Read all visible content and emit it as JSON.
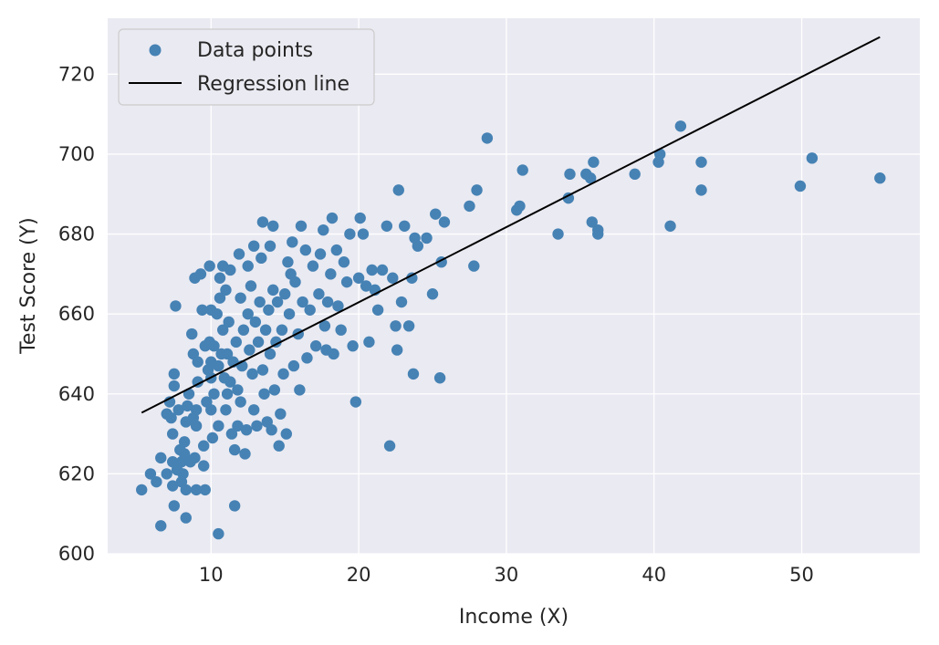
{
  "chart_data": {
    "type": "scatter",
    "xlabel": "Income (X)",
    "ylabel": "Test Score (Y)",
    "xlim": [
      3,
      58
    ],
    "ylim": [
      600,
      734
    ],
    "xticks": [
      10,
      20,
      30,
      40,
      50
    ],
    "yticks": [
      600,
      620,
      640,
      660,
      680,
      700,
      720
    ],
    "grid": true,
    "legend_position": "top-left",
    "colors": {
      "points": "#4682b4",
      "line": "#000000",
      "plot_background": "#eaeaf2",
      "grid": "#ffffff"
    },
    "legend": [
      {
        "label": "Data points",
        "kind": "marker"
      },
      {
        "label": "Regression line",
        "kind": "line"
      }
    ],
    "series": [
      {
        "name": "Data points",
        "kind": "scatter",
        "points": [
          [
            5.3,
            616
          ],
          [
            5.9,
            620
          ],
          [
            6.3,
            618
          ],
          [
            6.6,
            624
          ],
          [
            6.6,
            607
          ],
          [
            7.0,
            620
          ],
          [
            7.0,
            635
          ],
          [
            7.2,
            638
          ],
          [
            7.3,
            634
          ],
          [
            7.4,
            630
          ],
          [
            7.4,
            623
          ],
          [
            7.4,
            617
          ],
          [
            7.5,
            612
          ],
          [
            7.5,
            642
          ],
          [
            7.5,
            645
          ],
          [
            7.6,
            662
          ],
          [
            7.7,
            621
          ],
          [
            7.8,
            636
          ],
          [
            7.9,
            626
          ],
          [
            8.0,
            618
          ],
          [
            8.0,
            623
          ],
          [
            8.1,
            620
          ],
          [
            8.2,
            625
          ],
          [
            8.2,
            628
          ],
          [
            8.3,
            616
          ],
          [
            8.3,
            609
          ],
          [
            8.3,
            633
          ],
          [
            8.4,
            637
          ],
          [
            8.5,
            640
          ],
          [
            8.6,
            623
          ],
          [
            8.7,
            655
          ],
          [
            8.8,
            650
          ],
          [
            8.8,
            634
          ],
          [
            8.9,
            669
          ],
          [
            8.9,
            624
          ],
          [
            9.0,
            616
          ],
          [
            9.0,
            632
          ],
          [
            9.0,
            636
          ],
          [
            9.1,
            648
          ],
          [
            9.1,
            643
          ],
          [
            9.3,
            670
          ],
          [
            9.4,
            661
          ],
          [
            9.5,
            627
          ],
          [
            9.5,
            622
          ],
          [
            9.6,
            652
          ],
          [
            9.6,
            616
          ],
          [
            9.7,
            638
          ],
          [
            9.8,
            646
          ],
          [
            9.9,
            653
          ],
          [
            9.9,
            672
          ],
          [
            10.0,
            648
          ],
          [
            10.0,
            636
          ],
          [
            10.0,
            644
          ],
          [
            10.0,
            661
          ],
          [
            10.1,
            629
          ],
          [
            10.2,
            652
          ],
          [
            10.2,
            640
          ],
          [
            10.4,
            660
          ],
          [
            10.5,
            605
          ],
          [
            10.5,
            632
          ],
          [
            10.5,
            647
          ],
          [
            10.6,
            664
          ],
          [
            10.6,
            669
          ],
          [
            10.7,
            650
          ],
          [
            10.8,
            672
          ],
          [
            10.8,
            656
          ],
          [
            10.9,
            644
          ],
          [
            11.0,
            666
          ],
          [
            11.0,
            636
          ],
          [
            11.1,
            650
          ],
          [
            11.1,
            640
          ],
          [
            11.2,
            658
          ],
          [
            11.3,
            643
          ],
          [
            11.3,
            671
          ],
          [
            11.4,
            630
          ],
          [
            11.5,
            648
          ],
          [
            11.6,
            626
          ],
          [
            11.6,
            612
          ],
          [
            11.7,
            653
          ],
          [
            11.8,
            641
          ],
          [
            11.8,
            632
          ],
          [
            11.9,
            675
          ],
          [
            12.0,
            664
          ],
          [
            12.0,
            638
          ],
          [
            12.1,
            647
          ],
          [
            12.2,
            656
          ],
          [
            12.3,
            625
          ],
          [
            12.4,
            631
          ],
          [
            12.5,
            672
          ],
          [
            12.5,
            660
          ],
          [
            12.6,
            651
          ],
          [
            12.7,
            667
          ],
          [
            12.8,
            645
          ],
          [
            12.9,
            677
          ],
          [
            12.9,
            636
          ],
          [
            13.0,
            658
          ],
          [
            13.1,
            632
          ],
          [
            13.2,
            653
          ],
          [
            13.3,
            663
          ],
          [
            13.4,
            674
          ],
          [
            13.5,
            683
          ],
          [
            13.5,
            646
          ],
          [
            13.6,
            640
          ],
          [
            13.7,
            656
          ],
          [
            13.8,
            633
          ],
          [
            13.9,
            661
          ],
          [
            14.0,
            677
          ],
          [
            14.0,
            650
          ],
          [
            14.1,
            631
          ],
          [
            14.2,
            666
          ],
          [
            14.2,
            682
          ],
          [
            14.3,
            641
          ],
          [
            14.4,
            653
          ],
          [
            14.5,
            663
          ],
          [
            14.6,
            627
          ],
          [
            14.7,
            635
          ],
          [
            14.8,
            656
          ],
          [
            14.9,
            645
          ],
          [
            15.0,
            665
          ],
          [
            15.1,
            630
          ],
          [
            15.2,
            673
          ],
          [
            15.3,
            660
          ],
          [
            15.4,
            670
          ],
          [
            15.5,
            678
          ],
          [
            15.6,
            647
          ],
          [
            15.7,
            668
          ],
          [
            15.9,
            655
          ],
          [
            16.0,
            641
          ],
          [
            16.1,
            682
          ],
          [
            16.2,
            663
          ],
          [
            16.4,
            676
          ],
          [
            16.5,
            649
          ],
          [
            16.7,
            661
          ],
          [
            16.9,
            672
          ],
          [
            17.1,
            652
          ],
          [
            17.3,
            665
          ],
          [
            17.4,
            675
          ],
          [
            17.6,
            681
          ],
          [
            17.7,
            657
          ],
          [
            17.8,
            651
          ],
          [
            17.9,
            663
          ],
          [
            18.1,
            670
          ],
          [
            18.2,
            684
          ],
          [
            18.3,
            650
          ],
          [
            18.5,
            676
          ],
          [
            18.6,
            662
          ],
          [
            18.8,
            656
          ],
          [
            19.0,
            673
          ],
          [
            19.2,
            668
          ],
          [
            19.4,
            680
          ],
          [
            19.6,
            652
          ],
          [
            19.8,
            638
          ],
          [
            20.0,
            669
          ],
          [
            20.1,
            684
          ],
          [
            20.3,
            680
          ],
          [
            20.5,
            667
          ],
          [
            20.7,
            653
          ],
          [
            20.9,
            671
          ],
          [
            21.1,
            666
          ],
          [
            21.3,
            661
          ],
          [
            21.6,
            671
          ],
          [
            21.9,
            682
          ],
          [
            22.1,
            627
          ],
          [
            22.3,
            669
          ],
          [
            22.5,
            657
          ],
          [
            22.6,
            651
          ],
          [
            22.7,
            691
          ],
          [
            22.9,
            663
          ],
          [
            23.1,
            682
          ],
          [
            23.4,
            657
          ],
          [
            23.6,
            669
          ],
          [
            23.7,
            645
          ],
          [
            23.8,
            679
          ],
          [
            24.0,
            677
          ],
          [
            24.6,
            679
          ],
          [
            25.0,
            665
          ],
          [
            25.2,
            685
          ],
          [
            25.5,
            644
          ],
          [
            25.6,
            673
          ],
          [
            25.8,
            683
          ],
          [
            27.5,
            687
          ],
          [
            27.8,
            672
          ],
          [
            28.0,
            691
          ],
          [
            28.7,
            704
          ],
          [
            30.7,
            686
          ],
          [
            30.9,
            687
          ],
          [
            31.1,
            696
          ],
          [
            33.5,
            680
          ],
          [
            34.2,
            689
          ],
          [
            34.3,
            695
          ],
          [
            35.4,
            695
          ],
          [
            35.7,
            694
          ],
          [
            35.8,
            683
          ],
          [
            35.9,
            698
          ],
          [
            36.2,
            680
          ],
          [
            36.2,
            681
          ],
          [
            38.7,
            695
          ],
          [
            40.3,
            698
          ],
          [
            40.4,
            700
          ],
          [
            41.1,
            682
          ],
          [
            41.8,
            707
          ],
          [
            43.2,
            691
          ],
          [
            43.2,
            698
          ],
          [
            49.9,
            692
          ],
          [
            50.7,
            699
          ],
          [
            55.3,
            694
          ]
        ]
      },
      {
        "name": "Regression line",
        "kind": "line",
        "points": [
          [
            5.3,
            635.3
          ],
          [
            55.3,
            729.3
          ]
        ]
      }
    ]
  }
}
